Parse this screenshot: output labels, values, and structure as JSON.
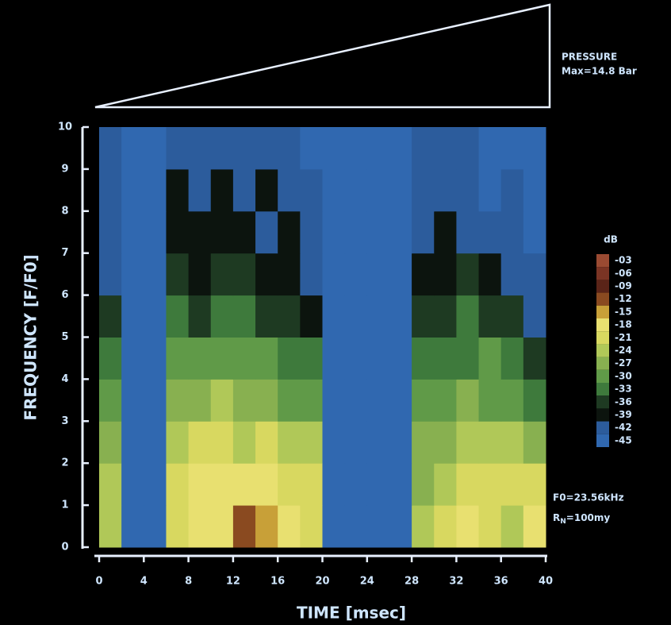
{
  "chart_data": {
    "type": "heatmap",
    "x_label": "TIME [msec]",
    "y_label": "FREQUENCY [F/F0]",
    "xlim": [
      0,
      40
    ],
    "ylim": [
      0,
      10
    ],
    "xticks": [
      0,
      4,
      8,
      12,
      16,
      20,
      24,
      28,
      32,
      36,
      40
    ],
    "yticks": [
      0,
      1,
      2,
      3,
      4,
      5,
      6,
      7,
      8,
      9,
      10
    ],
    "xbins": [
      0,
      2,
      4,
      6,
      8,
      10,
      12,
      14,
      16,
      18,
      20,
      22,
      24,
      26,
      28,
      30,
      32,
      34,
      36,
      38,
      40
    ],
    "ybins": [
      0,
      1,
      2,
      3,
      4,
      5,
      6,
      7,
      8,
      9,
      10
    ],
    "values": [
      [
        -24,
        -45,
        -45,
        -21,
        -18,
        -18,
        -12,
        -15,
        -18,
        -21,
        -45,
        -45,
        -45,
        -45,
        -24,
        -21,
        -18,
        -21,
        -24,
        -18
      ],
      [
        -24,
        -45,
        -45,
        -21,
        -18,
        -18,
        -18,
        -18,
        -21,
        -21,
        -45,
        -45,
        -45,
        -45,
        -27,
        -24,
        -21,
        -21,
        -21,
        -21
      ],
      [
        -27,
        -45,
        -45,
        -24,
        -21,
        -21,
        -24,
        -21,
        -24,
        -24,
        -45,
        -45,
        -45,
        -45,
        -27,
        -27,
        -24,
        -24,
        -24,
        -27
      ],
      [
        -30,
        -45,
        -45,
        -27,
        -27,
        -24,
        -27,
        -27,
        -30,
        -30,
        -45,
        -45,
        -45,
        -45,
        -30,
        -30,
        -27,
        -30,
        -30,
        -33
      ],
      [
        -33,
        -45,
        -45,
        -30,
        -30,
        -30,
        -30,
        -30,
        -33,
        -33,
        -45,
        -45,
        -45,
        -45,
        -33,
        -33,
        -33,
        -30,
        -33,
        -36
      ],
      [
        -36,
        -45,
        -45,
        -33,
        -36,
        -33,
        -33,
        -36,
        -36,
        -39,
        -45,
        -45,
        -45,
        -45,
        -36,
        -36,
        -33,
        -36,
        -36,
        -42
      ],
      [
        -42,
        -45,
        -45,
        -36,
        -39,
        -36,
        -36,
        -39,
        -39,
        -42,
        -45,
        -45,
        -45,
        -45,
        -39,
        -39,
        -36,
        -39,
        -42,
        -42
      ],
      [
        -42,
        -45,
        -45,
        -39,
        -39,
        -39,
        -39,
        -42,
        -39,
        -42,
        -45,
        -45,
        -45,
        -45,
        -42,
        -39,
        -42,
        -42,
        -42,
        -45
      ],
      [
        -42,
        -45,
        -45,
        -39,
        -42,
        -39,
        -42,
        -39,
        -42,
        -42,
        -45,
        -45,
        -45,
        -45,
        -42,
        -42,
        -42,
        -45,
        -42,
        -45
      ],
      [
        -42,
        -45,
        -45,
        -42,
        -42,
        -42,
        -42,
        -42,
        -42,
        -45,
        -45,
        -45,
        -45,
        -45,
        -42,
        -42,
        -42,
        -45,
        -45,
        -45
      ]
    ],
    "colorbar": {
      "title": "dB",
      "levels": [
        {
          "value": -3,
          "label": "-03",
          "color": "#9a4a32"
        },
        {
          "value": -6,
          "label": "-06",
          "color": "#7a3424"
        },
        {
          "value": -9,
          "label": "-09",
          "color": "#5a2418"
        },
        {
          "value": -12,
          "label": "-12",
          "color": "#8a4a20"
        },
        {
          "value": -15,
          "label": "-15",
          "color": "#c8a038"
        },
        {
          "value": -18,
          "label": "-18",
          "color": "#e8e070"
        },
        {
          "value": -21,
          "label": "-21",
          "color": "#d8d860"
        },
        {
          "value": -24,
          "label": "-24",
          "color": "#b0c858"
        },
        {
          "value": -27,
          "label": "-27",
          "color": "#88b050"
        },
        {
          "value": -30,
          "label": "-30",
          "color": "#609a48"
        },
        {
          "value": -33,
          "label": "-33",
          "color": "#3e7a3c"
        },
        {
          "value": -36,
          "label": "-36",
          "color": "#1e3a22"
        },
        {
          "value": -39,
          "label": "-39",
          "color": "#0c140e"
        },
        {
          "value": -42,
          "label": "-42",
          "color": "#2c5c9c"
        },
        {
          "value": -45,
          "label": "-45",
          "color": "#3068b0"
        }
      ]
    },
    "annotations": {
      "pressure_title": "PRESSURE",
      "pressure_max": "Max=14.8 Bar",
      "f0": "F0=23.56kHz",
      "rn_main": "R",
      "rn_sub": "N",
      "rn_rest": "=100my"
    }
  }
}
